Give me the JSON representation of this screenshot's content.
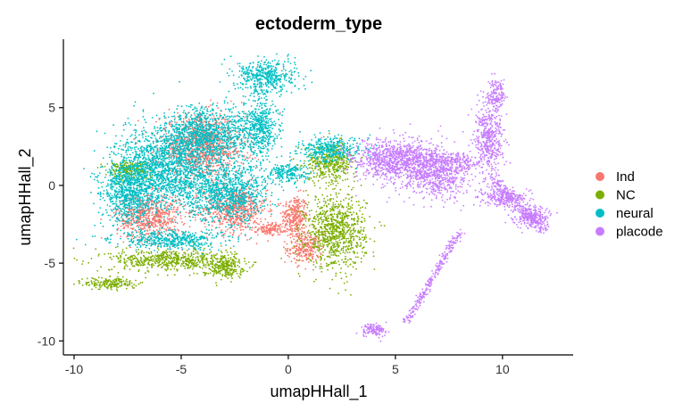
{
  "chart_data": {
    "type": "scatter",
    "title": "ectoderm_type",
    "xlabel": "umapHHall_1",
    "ylabel": "umapHHall_2",
    "xlim": [
      -10.5,
      13.3
    ],
    "ylim": [
      -10.9,
      9.4
    ],
    "x_ticks": [
      -10,
      -5,
      0,
      5,
      10
    ],
    "y_ticks": [
      -10,
      -5,
      0,
      5
    ],
    "grid": false,
    "legend_position": "right",
    "series": [
      {
        "name": "Ind",
        "color": "#F8766D",
        "regions": [
          {
            "center": [
              0.3,
              -2.0
            ],
            "radius": [
              0.6,
              1.4
            ]
          },
          {
            "center": [
              0.8,
              -4.0
            ],
            "radius": [
              0.8,
              1.0
            ]
          },
          {
            "center": [
              -0.8,
              -2.8
            ],
            "radius": [
              0.6,
              0.4
            ]
          },
          {
            "center": [
              -2.5,
              -1.5
            ],
            "radius": [
              1.5,
              1.5
            ]
          },
          {
            "center": [
              -6.5,
              -2.0
            ],
            "radius": [
              1.5,
              1.5
            ]
          },
          {
            "center": [
              -4.0,
              2.5
            ],
            "radius": [
              2.0,
              2.0
            ]
          }
        ]
      },
      {
        "name": "NC",
        "color": "#7CAE00",
        "regions": [
          {
            "center": [
              2.2,
              -3.0
            ],
            "radius": [
              1.4,
              2.3
            ]
          },
          {
            "center": [
              2.0,
              1.5
            ],
            "radius": [
              1.2,
              1.2
            ]
          },
          {
            "center": [
              -5.5,
              -4.8
            ],
            "radius": [
              2.8,
              0.7
            ]
          },
          {
            "center": [
              -8.3,
              -6.3
            ],
            "radius": [
              1.2,
              0.4
            ]
          },
          {
            "center": [
              -3.0,
              -5.2
            ],
            "radius": [
              1.0,
              0.7
            ]
          },
          {
            "center": [
              -7.5,
              1.0
            ],
            "radius": [
              1.0,
              0.6
            ]
          }
        ]
      },
      {
        "name": "neural",
        "color": "#00BFC4",
        "regions": [
          {
            "center": [
              -5.8,
              1.0
            ],
            "radius": [
              2.3,
              2.6
            ]
          },
          {
            "center": [
              -3.8,
              3.2
            ],
            "radius": [
              2.2,
              1.8
            ]
          },
          {
            "center": [
              -2.8,
              -0.5
            ],
            "radius": [
              1.8,
              1.8
            ]
          },
          {
            "center": [
              -1.0,
              7.0
            ],
            "radius": [
              1.4,
              1.1
            ]
          },
          {
            "center": [
              -1.3,
              3.8
            ],
            "radius": [
              0.8,
              2.0
            ]
          },
          {
            "center": [
              2.0,
              2.3
            ],
            "radius": [
              1.5,
              0.8
            ]
          },
          {
            "center": [
              -5.5,
              -3.5
            ],
            "radius": [
              2.5,
              0.6
            ]
          },
          {
            "center": [
              -7.5,
              -0.5
            ],
            "radius": [
              1.2,
              2.0
            ]
          },
          {
            "center": [
              0.0,
              0.8
            ],
            "radius": [
              1.0,
              0.6
            ]
          }
        ]
      },
      {
        "name": "placode",
        "color": "#C77CFF",
        "regions": [
          {
            "center": [
              5.0,
              1.5
            ],
            "radius": [
              2.0,
              1.5
            ]
          },
          {
            "center": [
              7.0,
              0.8
            ],
            "radius": [
              1.6,
              1.6
            ]
          },
          {
            "center": [
              9.4,
              3.0
            ],
            "radius": [
              0.7,
              2.2
            ]
          },
          {
            "center": [
              9.7,
              5.8
            ],
            "radius": [
              0.4,
              0.9
            ]
          },
          {
            "center": [
              11.3,
              -2.0
            ],
            "radius": [
              0.9,
              0.7
            ]
          },
          {
            "center": [
              10.0,
              -0.8
            ],
            "radius": [
              1.0,
              0.6
            ]
          },
          {
            "center": [
              4.0,
              -9.3
            ],
            "radius": [
              0.6,
              0.4
            ]
          }
        ],
        "strands": [
          {
            "from": [
              5.5,
              -8.8
            ],
            "to": [
              8.0,
              -3.0
            ],
            "width": 0.25
          },
          {
            "from": [
              9.5,
              0.5
            ],
            "to": [
              12.0,
              -3.0
            ],
            "width": 0.4
          },
          {
            "from": [
              3.5,
              2.0
            ],
            "to": [
              9.0,
              1.5
            ],
            "width": 0.6
          }
        ]
      }
    ]
  }
}
